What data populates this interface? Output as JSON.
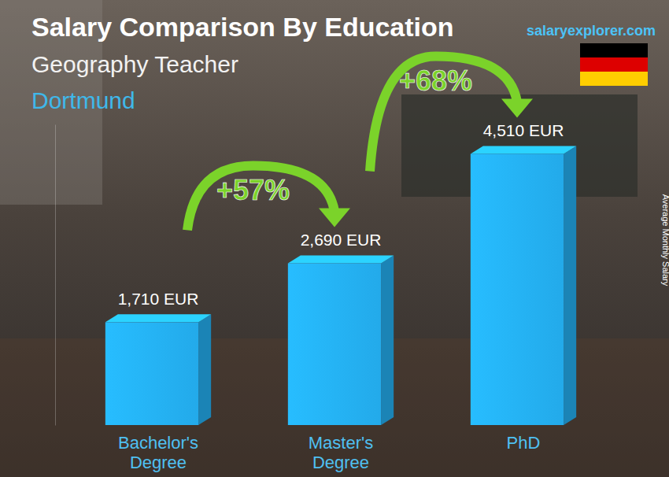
{
  "chart_data": {
    "type": "bar",
    "title": "Salary Comparison By Education",
    "subtitle": "Geography Teacher",
    "annotations": [
      "Dortmund",
      "salaryexplorer.com"
    ],
    "ylabel": "Average Monthly Salary",
    "categories": [
      "Bachelor's Degree",
      "Master's Degree",
      "PhD"
    ],
    "values": [
      1710,
      2690,
      4510
    ],
    "value_labels": [
      "1,710 EUR",
      "2,690 EUR",
      "4,510 EUR"
    ],
    "changes": [
      {
        "value": 57,
        "label": "+57%"
      },
      {
        "value": 68,
        "label": "+68%"
      }
    ],
    "color": "#23aaea",
    "ylim": [
      0,
      5000
    ],
    "tick_labels": false,
    "data_labels": true,
    "grid": false
  }
}
